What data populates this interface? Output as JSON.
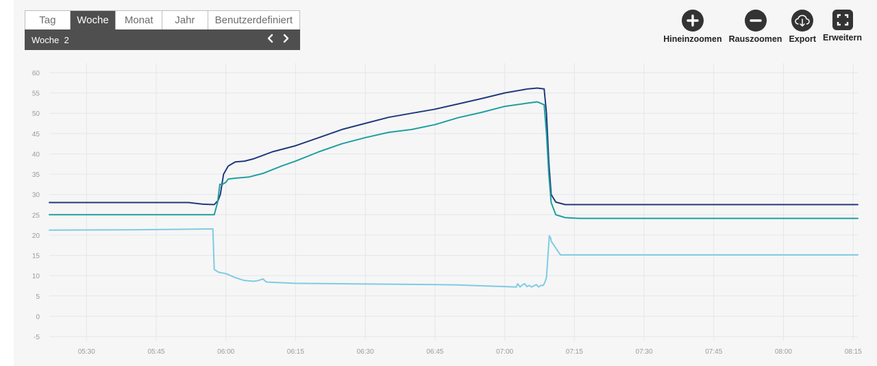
{
  "period": {
    "tabs": [
      {
        "label": "Tag",
        "active": false
      },
      {
        "label": "Woche",
        "active": true
      },
      {
        "label": "Monat",
        "active": false
      },
      {
        "label": "Jahr",
        "active": false
      },
      {
        "label": "Benutzerdefiniert",
        "active": false
      }
    ],
    "current_label": "Woche  2"
  },
  "toolbar": {
    "zoom_in_label": "Hineinzoomen",
    "zoom_out_label": "Rauszoomen",
    "export_label": "Export",
    "expand_label": "Erweitern"
  },
  "colors": {
    "series_dark": "#1f3a7a",
    "series_teal": "#1f9e9e",
    "series_light": "#7ecbe3",
    "grid": "#e4e6ec",
    "tick_text": "#9a9a9a",
    "panel_bg": "#f6f6f6"
  },
  "chart_data": {
    "type": "line",
    "ylim": [
      -5,
      60
    ],
    "yticks": [
      "-5",
      "0",
      "5",
      "10",
      "15",
      "20",
      "25",
      "30",
      "35",
      "40",
      "45",
      "50",
      "55",
      "60"
    ],
    "ytick_values": [
      -5,
      0,
      5,
      10,
      15,
      20,
      25,
      30,
      35,
      40,
      45,
      50,
      55,
      60
    ],
    "xlim": [
      322,
      496
    ],
    "xticks": [
      "05:30",
      "05:45",
      "06:00",
      "06:15",
      "06:30",
      "06:45",
      "07:00",
      "07:15",
      "07:30",
      "07:45",
      "08:00",
      "08:15"
    ],
    "xtick_values": [
      330,
      345,
      360,
      375,
      390,
      405,
      420,
      435,
      450,
      465,
      480,
      495
    ],
    "grid": true,
    "series": [
      {
        "color_key": "series_dark",
        "x": [
          322,
          330,
          345,
          352,
          355,
          357.5,
          358.3,
          358.8,
          359.5,
          360.5,
          362,
          364,
          366,
          370,
          375,
          380,
          385,
          390,
          395,
          400,
          405,
          410,
          415,
          420,
          425,
          427,
          428.5,
          429,
          429.5,
          430,
          431,
          433,
          496
        ],
        "y": [
          28,
          28,
          28,
          28,
          27.6,
          27.5,
          28.5,
          30,
          35,
          37,
          38,
          38.2,
          38.8,
          40.5,
          42,
          44,
          46,
          47.5,
          49,
          50,
          51,
          52.3,
          53.6,
          55,
          56,
          56.2,
          56,
          50,
          38,
          30,
          28.1,
          27.5,
          27.5
        ]
      },
      {
        "color_key": "series_teal",
        "x": [
          322,
          330,
          345,
          357.5,
          358.2,
          358.7,
          359.3,
          360,
          360.5,
          362,
          365,
          368,
          372,
          375,
          380,
          385,
          390,
          395,
          400,
          405,
          410,
          415,
          420,
          425,
          427,
          428.5,
          429,
          429.5,
          430,
          431,
          433,
          436,
          496
        ],
        "y": [
          25,
          25,
          25,
          25,
          28,
          32.5,
          32.5,
          33,
          33.8,
          34,
          34.3,
          35.2,
          37,
          38.2,
          40.5,
          42.5,
          44,
          45.3,
          46,
          47.2,
          48.9,
          50.2,
          51.7,
          52.5,
          52.8,
          52.1,
          45,
          35,
          28,
          25,
          24.3,
          24.1,
          24.1
        ]
      },
      {
        "color_key": "series_light",
        "x": [
          322,
          340,
          357.2,
          357.5,
          358.5,
          360,
          362,
          364,
          366,
          367,
          368,
          368.6,
          369,
          375,
          385,
          395,
          405,
          410,
          415,
          420,
          422.5,
          422.8,
          423.3,
          423.8,
          424.3,
          424.8,
          425.3,
          425.8,
          426.3,
          426.8,
          427.3,
          427.8,
          428.3,
          428.6,
          429,
          429.6,
          429.9,
          430,
          432,
          460,
          496
        ],
        "y": [
          21.2,
          21.3,
          21.5,
          11.5,
          10.8,
          10.5,
          9.5,
          8.8,
          8.6,
          8.8,
          9.2,
          8.5,
          8.4,
          8.1,
          8,
          7.9,
          7.8,
          7.7,
          7.5,
          7.3,
          7.2,
          8,
          7.2,
          7.7,
          8,
          7.3,
          7.6,
          7.2,
          7.5,
          7.8,
          7.2,
          7.6,
          7.6,
          8.2,
          9.5,
          19.8,
          19.3,
          18.5,
          15.1,
          15.1,
          15.1
        ]
      }
    ]
  }
}
